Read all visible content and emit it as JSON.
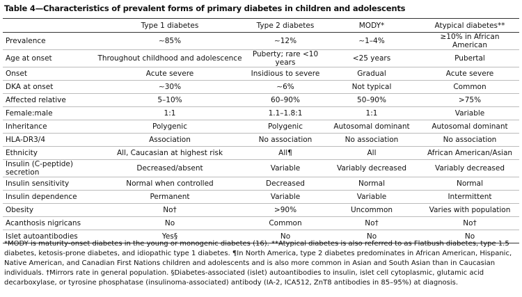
{
  "header": {
    "title": "Table 4—Characteristics of prevalent forms of primary diabetes in children and adolescents"
  },
  "table": {
    "columns": [
      "Type 1 diabetes",
      "Type 2 diabetes",
      "MODY*",
      "Atypical diabetes**"
    ],
    "rows": [
      [
        "Prevalence",
        "∼85%",
        "∼12%",
        "∼1–4%",
        "≥10% in African American"
      ],
      [
        "Age at onset",
        "Throughout childhood and adolescence",
        "Puberty; rare <10 years",
        "<25 years",
        "Pubertal"
      ],
      [
        "Onset",
        "Acute severe",
        "Insidious to severe",
        "Gradual",
        "Acute severe"
      ],
      [
        "DKA at onset",
        "∼30%",
        "∼6%",
        "Not typical",
        "Common"
      ],
      [
        "Affected relative",
        "5–10%",
        "60–90%",
        "50–90%",
        ">75%"
      ],
      [
        "Female:male",
        "1:1",
        "1.1–1.8:1",
        "1:1",
        "Variable"
      ],
      [
        "Inheritance",
        "Polygenic",
        "Polygenic",
        "Autosomal dominant",
        "Autosomal dominant"
      ],
      [
        "HLA-DR3/4",
        "Association",
        "No association",
        "No association",
        "No association"
      ],
      [
        "Ethnicity",
        "All, Caucasian at highest risk",
        "All¶",
        "All",
        "African American/Asian"
      ],
      [
        "Insulin (C-peptide) secretion",
        "Decreased/absent",
        "Variable",
        "Variably decreased",
        "Variably decreased"
      ],
      [
        "Insulin sensitivity",
        "Normal when controlled",
        "Decreased",
        "Normal",
        "Normal"
      ],
      [
        "Insulin dependence",
        "Permanent",
        "Variable",
        "Variable",
        "Intermittent"
      ],
      [
        "Obesity",
        "No†",
        ">90%",
        "Uncommon",
        "Varies with population"
      ],
      [
        "Acanthosis nigricans",
        "No",
        "Common",
        "No†",
        "No†"
      ],
      [
        "Islet autoantibodies",
        "Yes§",
        "No",
        "No",
        "No"
      ]
    ]
  },
  "footnote": "*MODY is maturity-onset diabetes in the young or monogenic diabetes (16). **Atypical diabetes is also referred to as Flatbush diabetes, type 1.5 diabetes, ketosis-prone diabetes, and idiopathic type 1 diabetes. ¶In North America, type 2 diabetes predominates in African American, Hispanic, Native American, and Canadian First Nations children and adolescents and is also more common in Asian and South Asian than in Caucasian individuals. †Mirrors rate in general population. §Diabetes-associated (islet) autoantibodies to insulin, islet cell cytoplasmic, glutamic acid decarboxylase, or tyrosine phosphatase (insulinoma-associated) antibody (IA-2, ICA512, ZnT8 antibodies in 85–95%) at diagnosis."
}
